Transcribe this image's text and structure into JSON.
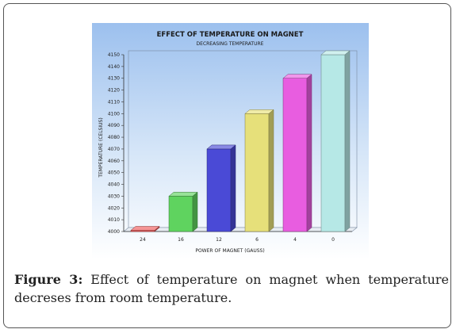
{
  "caption": {
    "label": "Figure 3:",
    "text": " Effect of temperature on magnet when temperature decreses from room temperature."
  },
  "chart_data": {
    "type": "bar",
    "title": "EFFECT OF TEMPERATURE ON MAGNET",
    "subtitle": "DECREASING TEMPERATURE",
    "xlabel": "POWER OF MAGNET (GAUSS)",
    "ylabel": "TEMPERATURE (CELSIUS)",
    "categories": [
      "24",
      "16",
      "12",
      "6",
      "4",
      "0"
    ],
    "values": [
      4000,
      4030,
      4070,
      4100,
      4130,
      4150
    ],
    "ylim": [
      4000,
      4150
    ],
    "yticks": [
      4000,
      4010,
      4020,
      4030,
      4040,
      4050,
      4060,
      4070,
      4080,
      4090,
      4100,
      4110,
      4120,
      4130,
      4140,
      4150
    ],
    "grid": false,
    "legend": "none",
    "colors": [
      "#ef5a5a",
      "#5fd35f",
      "#4a4ad6",
      "#e6e07a",
      "#e85de0",
      "#b6e8e6"
    ],
    "background": [
      "#9fc2ee",
      "#ffffff"
    ]
  }
}
